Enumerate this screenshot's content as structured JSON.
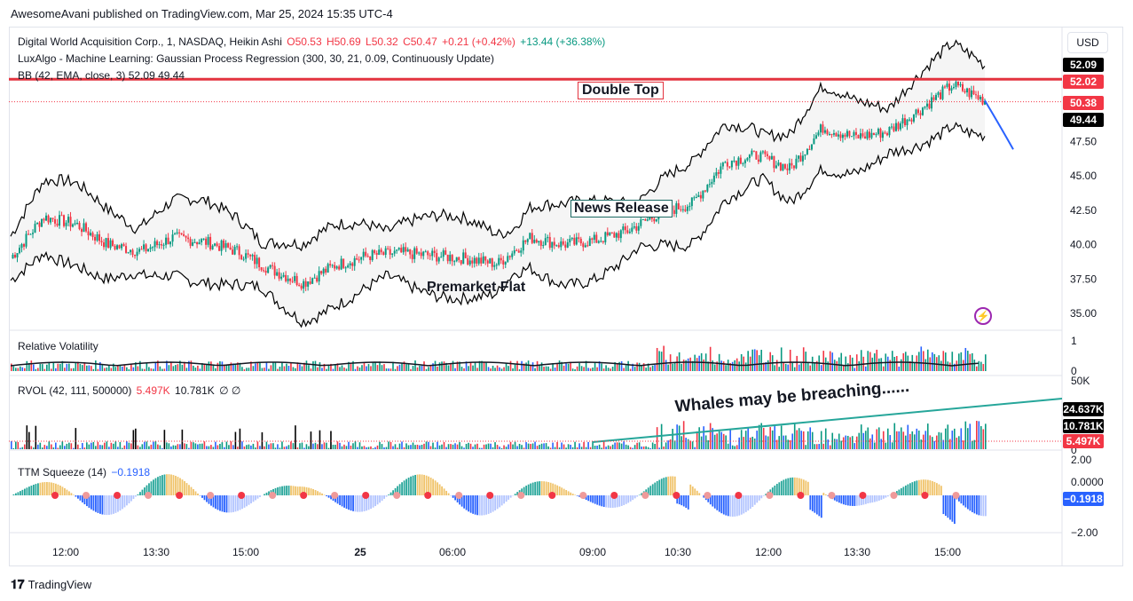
{
  "header": {
    "published": "AwesomeAvani published on TradingView.com, Mar 25, 2024 15:35 UTC-4"
  },
  "legend": {
    "main": {
      "symbol": "Digital World Acquisition Corp., 1, NASDAQ, Heikin Ashi",
      "o": "O50.53",
      "h": "H50.69",
      "l": "L50.32",
      "c": "C50.47",
      "chg": "+0.21 (+0.42%)",
      "extra": "+13.44 (+36.38%)"
    },
    "luxalgo": "LuxAlgo - Machine Learning: Gaussian Process Regression (300, 30, 21, 0.09, Continuously Update)",
    "bb": "BB (42, EMA, close, 3)  52.09  49.44",
    "rv": "Relative Volatility",
    "rvol": {
      "label": "RVOL (42, 111, 500000)",
      "v1": "5.497K",
      "v2": "10.781K",
      "v3": "∅  ∅"
    },
    "ttm": {
      "label": "TTM Squeeze (14)",
      "value": "−0.1918"
    }
  },
  "currency": "USD",
  "price_tags": [
    {
      "text": "52.09",
      "color": "#000000"
    },
    {
      "text": "52.02",
      "color": "#f23645"
    },
    {
      "text": "50.38",
      "color": "#f23645"
    },
    {
      "text": "49.44",
      "color": "#000000"
    }
  ],
  "rvol_tags": [
    {
      "text": "24.637K",
      "color": "#000000"
    },
    {
      "text": "10.781K",
      "color": "#000000"
    },
    {
      "text": "5.497K",
      "color": "#f23645"
    }
  ],
  "ttm_tag": {
    "text": "−0.1918",
    "color": "#2962ff"
  },
  "annotations": {
    "double_top": "Double Top",
    "news_release": "News Release",
    "premarket_flat": "Premarket Flat",
    "whales": "Whales  may be breaching......"
  },
  "footer": {
    "brand": "TradingView"
  },
  "colors": {
    "up": "#089981",
    "down": "#f23645",
    "band": "#000000",
    "resistance": "#e3333f",
    "trend": "#26a69a",
    "forecast": "#2962ff"
  },
  "chart_data": {
    "type": "candlestick",
    "x_ticks": [
      "12:00",
      "13:30",
      "15:00",
      "25",
      "06:00",
      "09:00",
      "10:30",
      "12:00",
      "13:30",
      "15:00"
    ],
    "price_axis": [
      "52.09",
      "52.02",
      "50.38",
      "49.44",
      "47.50",
      "45.00",
      "42.50",
      "40.00",
      "37.50",
      "35.00"
    ],
    "price_ticks": [
      47.5,
      45.0,
      42.5,
      40.0,
      37.5,
      35.0
    ],
    "resistance_level": 52.02,
    "last_close": 50.38,
    "bb_upper": 52.09,
    "bb_lower": 49.44,
    "rv_axis": [
      "1",
      "0"
    ],
    "rvol_axis": [
      "50K",
      "0"
    ],
    "ttm_axis": [
      "2.00",
      "0.0000",
      "−2.00"
    ],
    "closes": [
      {
        "t": "11:30",
        "v": 39.0
      },
      {
        "t": "12:00",
        "v": 42.0
      },
      {
        "t": "12:30",
        "v": 41.5
      },
      {
        "t": "13:00",
        "v": 40.0
      },
      {
        "t": "13:30",
        "v": 39.5
      },
      {
        "t": "14:00",
        "v": 40.5
      },
      {
        "t": "14:30",
        "v": 40.2
      },
      {
        "t": "15:00",
        "v": 39.5
      },
      {
        "t": "15:30",
        "v": 38.2
      },
      {
        "t": "16:00",
        "v": 37.2
      },
      {
        "t": "16:30",
        "v": 38.5
      },
      {
        "t": "25",
        "v": 39.2
      },
      {
        "t": "04:00",
        "v": 39.4
      },
      {
        "t": "06:00",
        "v": 39.2
      },
      {
        "t": "07:30",
        "v": 39.0
      },
      {
        "t": "09:00",
        "v": 38.6
      },
      {
        "t": "09:30",
        "v": 40.5
      },
      {
        "t": "10:00",
        "v": 40.0
      },
      {
        "t": "10:30",
        "v": 40.3
      },
      {
        "t": "11:00",
        "v": 41.0
      },
      {
        "t": "11:30",
        "v": 42.3
      },
      {
        "t": "12:00",
        "v": 43.0
      },
      {
        "t": "12:30",
        "v": 46.0
      },
      {
        "t": "13:00",
        "v": 46.5
      },
      {
        "t": "13:30",
        "v": 45.5
      },
      {
        "t": "14:00",
        "v": 48.5
      },
      {
        "t": "14:15",
        "v": 47.8
      },
      {
        "t": "14:30",
        "v": 48.2
      },
      {
        "t": "15:00",
        "v": 49.8
      },
      {
        "t": "15:20",
        "v": 51.6
      },
      {
        "t": "15:35",
        "v": 50.47
      }
    ]
  }
}
